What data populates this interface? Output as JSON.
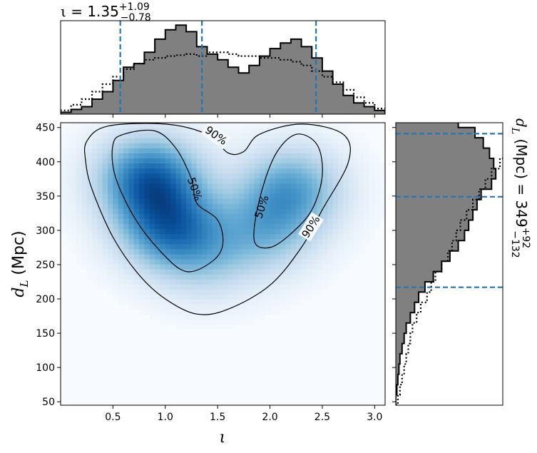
{
  "chart_data": [
    {
      "panel": "top-marginal",
      "type": "histogram",
      "title_symbol": "ι",
      "title_eq": " = 1.35",
      "title_sup": "+1.09",
      "title_sub": "−0.78",
      "xlim": [
        0.0,
        3.1
      ],
      "median": 1.35,
      "credible_lines": [
        0.57,
        1.35,
        2.44
      ],
      "bin_edges": [
        0.0,
        0.1,
        0.2,
        0.3,
        0.4,
        0.5,
        0.6,
        0.7,
        0.8,
        0.9,
        1.0,
        1.1,
        1.2,
        1.3,
        1.4,
        1.5,
        1.6,
        1.7,
        1.8,
        1.9,
        2.0,
        2.1,
        2.2,
        2.3,
        2.4,
        2.5,
        2.6,
        2.7,
        2.8,
        2.9,
        3.0,
        3.1
      ],
      "posterior_counts": [
        2,
        5,
        8,
        16,
        24,
        36,
        50,
        54,
        66,
        80,
        90,
        95,
        88,
        72,
        64,
        58,
        50,
        44,
        52,
        62,
        70,
        76,
        80,
        72,
        60,
        46,
        32,
        20,
        12,
        8,
        4
      ],
      "prior_counts": [
        4,
        10,
        16,
        24,
        32,
        40,
        48,
        54,
        58,
        60,
        62,
        63,
        64,
        62,
        66,
        66,
        64,
        62,
        62,
        60,
        60,
        58,
        56,
        52,
        46,
        40,
        34,
        26,
        18,
        12,
        6
      ]
    },
    {
      "panel": "joint",
      "type": "heatmap",
      "xlabel": "ι",
      "ylabel_main": "d",
      "ylabel_sub": "L",
      "ylabel_rest": " (Mpc)",
      "xlim": [
        0.0,
        3.1
      ],
      "ylim": [
        45,
        457
      ],
      "xticks": [
        0.5,
        1.0,
        1.5,
        2.0,
        2.5,
        3.0
      ],
      "xtick_labels": [
        "0.5",
        "1.0",
        "1.5",
        "2.0",
        "2.5",
        "3.0"
      ],
      "yticks": [
        50,
        100,
        150,
        200,
        250,
        300,
        350,
        400,
        450
      ],
      "ytick_labels": [
        "50",
        "100",
        "150",
        "200",
        "250",
        "300",
        "350",
        "400",
        "450"
      ],
      "colormap": "Blues",
      "density_peaks": [
        {
          "iota": 0.85,
          "dl": 375,
          "weight": 1.0
        },
        {
          "iota": 1.05,
          "dl": 305,
          "weight": 0.85
        },
        {
          "iota": 2.2,
          "dl": 360,
          "weight": 0.65
        },
        {
          "iota": 1.95,
          "dl": 300,
          "weight": 0.45
        },
        {
          "iota": 1.4,
          "dl": 260,
          "weight": 0.3
        }
      ],
      "contour_labels": [
        "90%",
        "50%",
        "50%",
        "90%"
      ],
      "contour_90": [
        [
          0.25,
          430
        ],
        [
          0.45,
          452
        ],
        [
          1.0,
          455
        ],
        [
          1.4,
          440
        ],
        [
          1.6,
          413
        ],
        [
          1.75,
          415
        ],
        [
          1.9,
          440
        ],
        [
          2.3,
          455
        ],
        [
          2.7,
          440
        ],
        [
          2.75,
          400
        ],
        [
          2.5,
          330
        ],
        [
          2.3,
          275
        ],
        [
          2.0,
          220
        ],
        [
          1.6,
          185
        ],
        [
          1.3,
          178
        ],
        [
          1.0,
          200
        ],
        [
          0.75,
          235
        ],
        [
          0.5,
          290
        ],
        [
          0.3,
          360
        ],
        [
          0.24,
          400
        ]
      ],
      "contour_50_left": [
        [
          0.5,
          425
        ],
        [
          0.6,
          440
        ],
        [
          0.9,
          445
        ],
        [
          1.1,
          420
        ],
        [
          1.25,
          375
        ],
        [
          1.3,
          340
        ],
        [
          1.5,
          315
        ],
        [
          1.55,
          280
        ],
        [
          1.45,
          255
        ],
        [
          1.2,
          240
        ],
        [
          0.95,
          270
        ],
        [
          0.7,
          320
        ],
        [
          0.52,
          380
        ]
      ],
      "contour_50_right": [
        [
          1.85,
          285
        ],
        [
          1.9,
          345
        ],
        [
          2.05,
          410
        ],
        [
          2.25,
          440
        ],
        [
          2.45,
          425
        ],
        [
          2.5,
          380
        ],
        [
          2.4,
          330
        ],
        [
          2.2,
          295
        ],
        [
          2.0,
          275
        ]
      ]
    },
    {
      "panel": "right-marginal",
      "type": "histogram",
      "orientation": "horizontal",
      "side_label_main": "d",
      "side_label_sub": "L",
      "side_label_eq": " (Mpc) = 349",
      "side_label_sup": "+92",
      "side_label_subval": "−132",
      "ylim": [
        45,
        457
      ],
      "median": 349,
      "credible_lines": [
        217,
        349,
        441
      ],
      "bin_edges": [
        45,
        60,
        75,
        90,
        105,
        120,
        135,
        150,
        165,
        180,
        195,
        210,
        225,
        240,
        255,
        270,
        285,
        300,
        315,
        330,
        345,
        360,
        375,
        390,
        405,
        420,
        435,
        450,
        465
      ],
      "posterior_counts": [
        0,
        1,
        2,
        3,
        4,
        6,
        8,
        10,
        14,
        18,
        22,
        28,
        36,
        44,
        52,
        60,
        66,
        70,
        74,
        78,
        82,
        92,
        96,
        94,
        90,
        84,
        76,
        60
      ],
      "prior_counts": [
        2,
        4,
        6,
        8,
        10,
        12,
        14,
        16,
        20,
        24,
        30,
        34,
        38,
        44,
        50,
        54,
        58,
        62,
        68,
        74,
        80,
        86,
        92,
        100,
        106,
        110,
        112,
        114
      ]
    }
  ]
}
